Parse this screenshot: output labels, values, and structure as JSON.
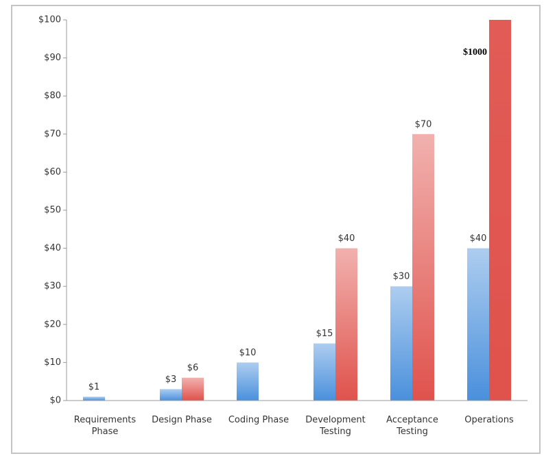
{
  "chart_data": {
    "type": "bar",
    "categories": [
      "Requirements Phase",
      "Design Phase",
      "Coding Phase",
      "Development Testing",
      "Acceptance Testing",
      "Operations"
    ],
    "series": [
      {
        "color": "#4a90dc",
        "values": [
          1,
          3,
          10,
          15,
          30,
          40
        ],
        "value_labels": [
          "$1",
          "$3",
          "$10",
          "$15",
          "$30",
          "$40"
        ]
      },
      {
        "color": "#e0524c",
        "values": [
          null,
          6,
          null,
          40,
          70,
          1000
        ],
        "value_labels": [
          null,
          "$6",
          null,
          "$40",
          "$70",
          "$1000"
        ]
      }
    ],
    "ylim": [
      0,
      100
    ],
    "yticks": [
      {
        "value": 0,
        "label": "$0"
      },
      {
        "value": 10,
        "label": "$10"
      },
      {
        "value": 20,
        "label": "$20"
      },
      {
        "value": 30,
        "label": "$30"
      },
      {
        "value": 40,
        "label": "$40"
      },
      {
        "value": 50,
        "label": "$50"
      },
      {
        "value": 60,
        "label": "$60"
      },
      {
        "value": 70,
        "label": "$70"
      },
      {
        "value": 80,
        "label": "$80"
      },
      {
        "value": 90,
        "label": "$90"
      },
      {
        "value": 100,
        "label": "$100"
      }
    ],
    "grid": false
  }
}
